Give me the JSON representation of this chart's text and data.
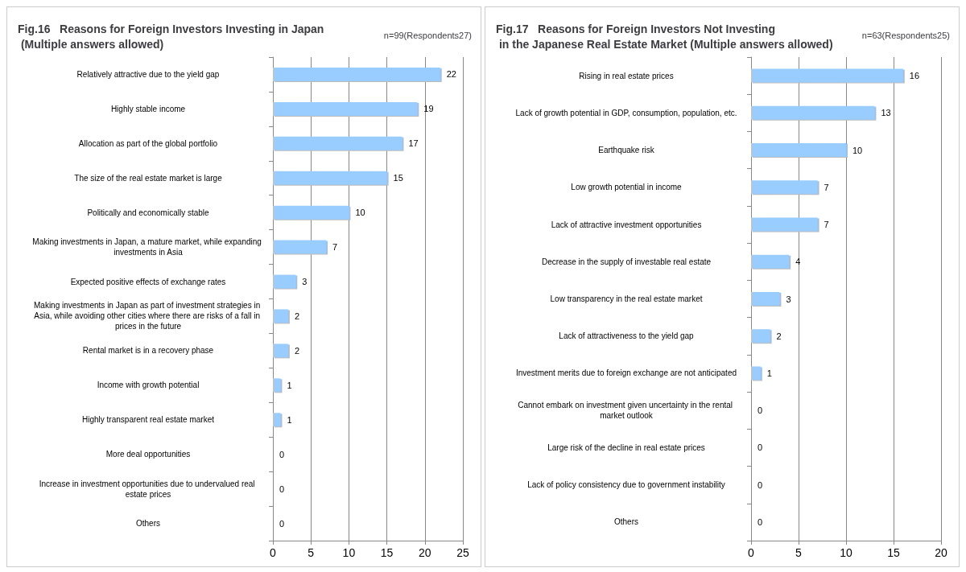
{
  "chart_data": [
    {
      "type": "bar",
      "orientation": "horizontal",
      "title": "Fig.16   Reasons for Foreign Investors Investing in Japan\n (Multiple answers allowed)",
      "subtitle": "n=99(Respondents27)",
      "categories": [
        "Relatively attractive due to the yield gap",
        "Highly stable income",
        "Allocation as part of the global portfolio",
        "The size of the real estate market is large",
        "Politically and economically stable",
        "Making investments in Japan, a mature market, while expanding investments in Asia",
        "Expected positive effects of exchange rates",
        "Making investments in Japan as part of investment strategies in Asia, while avoiding other cities where there are risks of a fall in prices in the future",
        "Rental market is in a recovery phase",
        "Income with growth potential",
        "Highly transparent real estate market",
        "More deal opportunities",
        "Increase in investment opportunities due to undervalued real estate prices",
        "Others"
      ],
      "values": [
        22,
        19,
        17,
        15,
        10,
        7,
        3,
        2,
        2,
        1,
        1,
        0,
        0,
        0
      ],
      "color": "#99ccff",
      "xlim": [
        0,
        25
      ],
      "xticks": [
        0,
        5,
        10,
        15,
        20,
        25
      ],
      "grid": "x",
      "data_labels": true
    },
    {
      "type": "bar",
      "orientation": "horizontal",
      "title": "Fig.17   Reasons for Foreign Investors Not Investing\n in the Japanese Real Estate Market (Multiple answers allowed)",
      "subtitle": "n=63(Respondents25)",
      "categories": [
        "Rising in real estate prices",
        "Lack of growth potential in GDP, consumption, population, etc.",
        "Earthquake risk",
        "Low growth potential in income",
        "Lack of attractive investment opportunities",
        "Decrease in the supply of investable real estate",
        "Low transparency in the real estate market",
        "Lack of attractiveness to the yield gap",
        "Investment merits due to foreign exchange are not anticipated",
        "Cannot embark on investment given uncertainty in the rental market outlook",
        "Large risk of the decline in real estate prices",
        "Lack of policy consistency due to government instability",
        "Others"
      ],
      "values": [
        16,
        13,
        10,
        7,
        7,
        4,
        3,
        2,
        1,
        0,
        0,
        0,
        0
      ],
      "color": "#99ccff",
      "xlim": [
        0,
        20
      ],
      "xticks": [
        0,
        5,
        10,
        15,
        20
      ],
      "grid": "x",
      "data_labels": true
    }
  ]
}
